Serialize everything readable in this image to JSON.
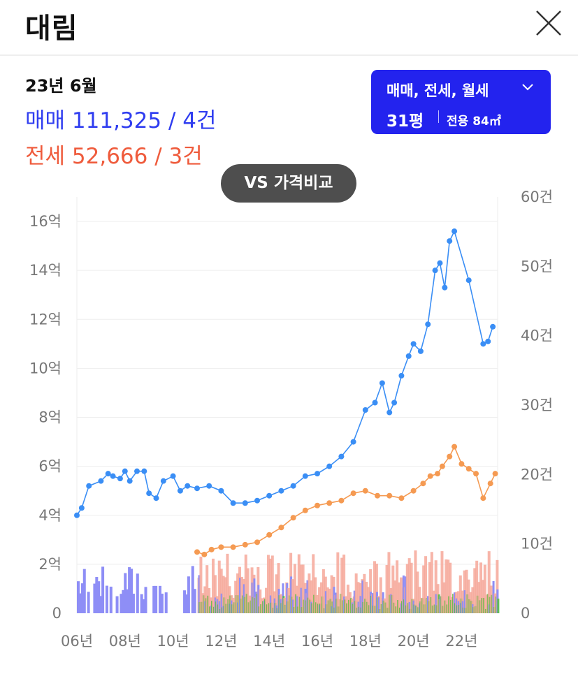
{
  "header": {
    "title": "대림",
    "close_icon": "close-icon"
  },
  "summary": {
    "period": "23년 6월",
    "sale_text": "매매 111,325 / 4건",
    "jeonse_text": "전세 52,666 / 3건"
  },
  "filter": {
    "types_label": "매매, 전세, 월세",
    "chevron_icon": "chevron-down-icon",
    "pyeong_label": "31평",
    "area_label": "전용 84㎡"
  },
  "vs_button_label": "VS 가격비교",
  "colors": {
    "sale": "#2f3df0",
    "jeonse": "#ef5b3c",
    "sale_line": "#3a8ef5",
    "jeonse_line": "#f59a52",
    "volume_other": "#4fbf3a",
    "filter_bg": "#2323ee"
  },
  "chart_data": {
    "type": "line",
    "left_axis": {
      "label_suffix": "억",
      "ticks": [
        "0",
        "2억",
        "4억",
        "6억",
        "8억",
        "10억",
        "12억",
        "14억",
        "16억"
      ],
      "range": [
        0,
        17
      ]
    },
    "right_axis": {
      "ticks": [
        "0",
        "10건",
        "20건",
        "30건",
        "40건",
        "50건",
        "60건"
      ],
      "range": [
        0,
        60
      ]
    },
    "x_ticks": [
      "06년",
      "08년",
      "10년",
      "12년",
      "14년",
      "16년",
      "18년",
      "20년",
      "22년"
    ],
    "x_range": [
      2006,
      2023.5
    ],
    "series": [
      {
        "name": "매매",
        "x": [
          2006,
          2006.2,
          2006.5,
          2007,
          2007.3,
          2007.5,
          2007.8,
          2008,
          2008.2,
          2008.5,
          2008.8,
          2009,
          2009.3,
          2009.6,
          2010,
          2010.3,
          2010.6,
          2011,
          2011.5,
          2012,
          2012.5,
          2013,
          2013.5,
          2014,
          2014.5,
          2015,
          2015.5,
          2016,
          2016.5,
          2017,
          2017.5,
          2018,
          2018.4,
          2018.7,
          2019,
          2019.2,
          2019.5,
          2019.8,
          2020,
          2020.3,
          2020.6,
          2020.9,
          2021.1,
          2021.3,
          2021.5,
          2021.7,
          2022.3,
          2022.9,
          2023.1,
          2023.3
        ],
        "values": [
          4.0,
          4.3,
          5.2,
          5.4,
          5.7,
          5.6,
          5.5,
          5.8,
          5.4,
          5.8,
          5.8,
          4.9,
          4.7,
          5.4,
          5.6,
          5.0,
          5.2,
          5.1,
          5.2,
          5.0,
          4.5,
          4.5,
          4.6,
          4.8,
          5.0,
          5.2,
          5.6,
          5.7,
          6.0,
          6.4,
          7.0,
          8.3,
          8.6,
          9.4,
          8.2,
          8.6,
          9.7,
          10.5,
          11.0,
          10.7,
          11.8,
          14.0,
          14.3,
          13.3,
          15.2,
          15.6,
          13.6,
          11.0,
          11.1,
          11.7
        ]
      },
      {
        "name": "전세",
        "x": [
          2011,
          2011.3,
          2011.6,
          2012,
          2012.5,
          2013,
          2013.5,
          2014,
          2014.5,
          2015,
          2015.5,
          2016,
          2016.5,
          2017,
          2017.5,
          2018,
          2018.5,
          2019,
          2019.5,
          2020,
          2020.4,
          2020.7,
          2021,
          2021.2,
          2021.5,
          2021.7,
          2022,
          2022.3,
          2022.6,
          2022.9,
          2023.2,
          2023.4
        ],
        "values": [
          2.5,
          2.4,
          2.6,
          2.7,
          2.7,
          2.8,
          2.9,
          3.2,
          3.5,
          3.9,
          4.2,
          4.4,
          4.5,
          4.6,
          4.9,
          5.0,
          4.8,
          4.8,
          4.7,
          5.0,
          5.3,
          5.6,
          5.7,
          6.0,
          6.4,
          6.8,
          6.1,
          5.9,
          5.7,
          4.7,
          5.3,
          5.7
        ]
      }
    ]
  }
}
